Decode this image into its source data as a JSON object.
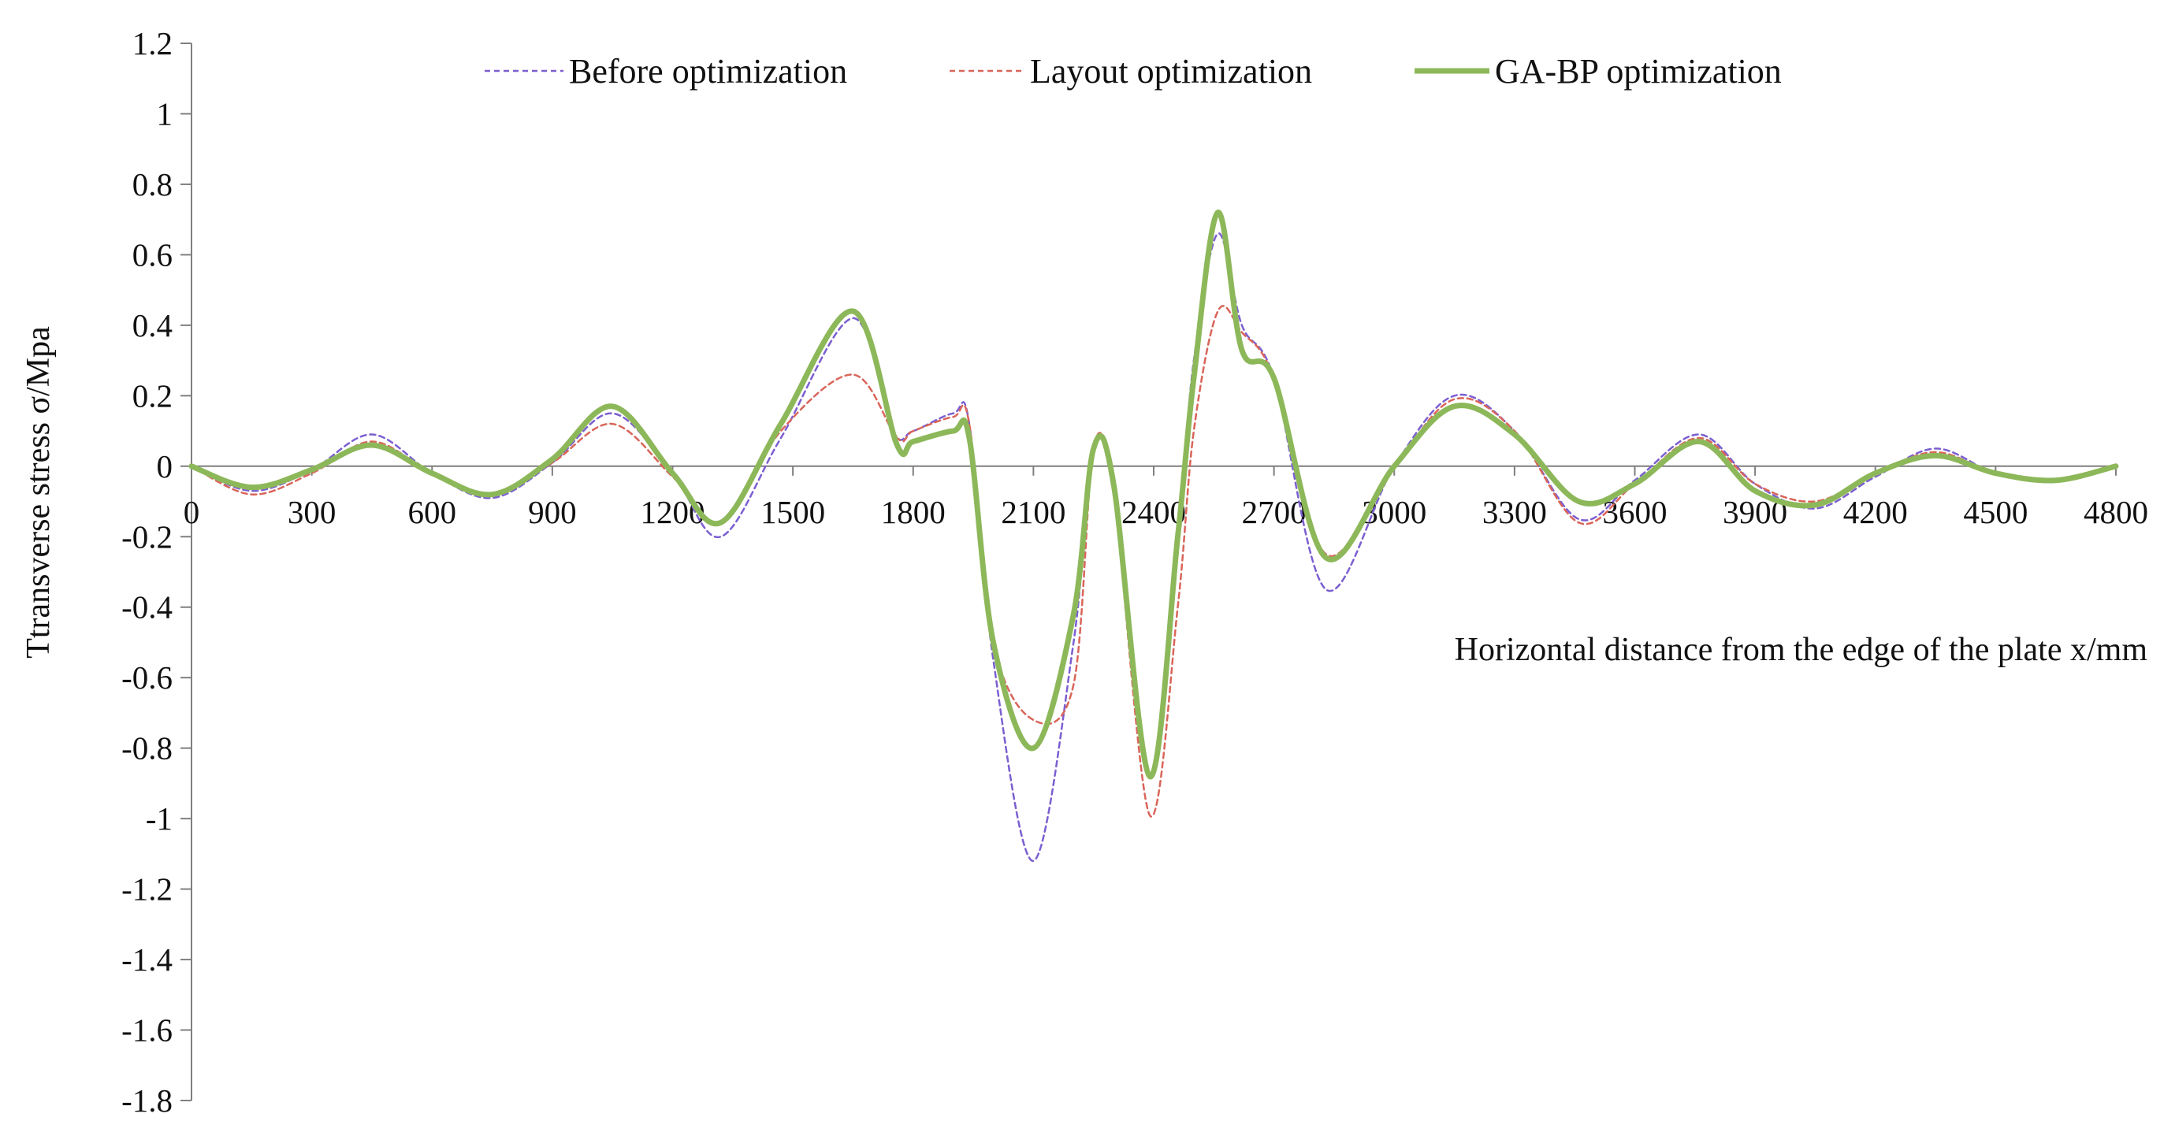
{
  "colors": {
    "before": "#7b5fd1",
    "layout": "#d9655a",
    "gabp": "#8db85a",
    "axis": "#7f7f7f"
  },
  "chart_data": {
    "type": "line",
    "title": "",
    "xlabel": "Horizontal distance from the edge of the plate x/mm",
    "ylabel": "Ttransverse stress σ/Mpa",
    "xlim": [
      0,
      4800
    ],
    "ylim": [
      -1.8,
      1.2
    ],
    "x_ticks": [
      0,
      300,
      600,
      900,
      1200,
      1500,
      1800,
      2100,
      2400,
      2700,
      3000,
      3300,
      3600,
      3900,
      4200,
      4500,
      4800
    ],
    "x_tick_labels": [
      "0",
      "300",
      "600",
      "900",
      "1200",
      "1500",
      "1800",
      "2100",
      "2400",
      "2700",
      "3000",
      "3300",
      "3600",
      "3900",
      "4200",
      "4500",
      "4800"
    ],
    "y_ticks": [
      1.2,
      1,
      0.8,
      0.6,
      0.4,
      0.2,
      0,
      -0.2,
      -0.4,
      -0.6,
      -0.8,
      -1,
      -1.2,
      -1.4,
      -1.6,
      -1.8
    ],
    "y_tick_labels": [
      "1.2",
      "1",
      "0.8",
      "0.6",
      "0.4",
      "0.2",
      "0",
      "-0.2",
      "-0.4",
      "-0.6",
      "-0.8",
      "-1",
      "-1.2",
      "-1.4",
      "-1.6",
      "-1.8"
    ],
    "grid": false,
    "legend": "top",
    "series": [
      {
        "name": "Before optimization",
        "style": "dashed",
        "points": [
          [
            0,
            0
          ],
          [
            150,
            -0.07
          ],
          [
            300,
            -0.01
          ],
          [
            450,
            0.09
          ],
          [
            600,
            -0.02
          ],
          [
            750,
            -0.09
          ],
          [
            900,
            0.01
          ],
          [
            1050,
            0.15
          ],
          [
            1200,
            -0.02
          ],
          [
            1320,
            -0.2
          ],
          [
            1470,
            0.08
          ],
          [
            1650,
            0.42
          ],
          [
            1750,
            0.1
          ],
          [
            1800,
            0.1
          ],
          [
            1900,
            0.15
          ],
          [
            1940,
            0.12
          ],
          [
            2000,
            -0.55
          ],
          [
            2100,
            -1.12
          ],
          [
            2200,
            -0.5
          ],
          [
            2250,
            0.05
          ],
          [
            2300,
            -0.08
          ],
          [
            2390,
            -0.88
          ],
          [
            2460,
            -0.2
          ],
          [
            2500,
            0.3
          ],
          [
            2560,
            0.66
          ],
          [
            2620,
            0.4
          ],
          [
            2700,
            0.25
          ],
          [
            2830,
            -0.35
          ],
          [
            3000,
            0
          ],
          [
            3150,
            0.2
          ],
          [
            3300,
            0.1
          ],
          [
            3460,
            -0.15
          ],
          [
            3600,
            -0.04
          ],
          [
            3760,
            0.09
          ],
          [
            3900,
            -0.05
          ],
          [
            4050,
            -0.12
          ],
          [
            4200,
            -0.03
          ],
          [
            4350,
            0.05
          ],
          [
            4500,
            -0.02
          ],
          [
            4650,
            -0.04
          ],
          [
            4800,
            0
          ]
        ]
      },
      {
        "name": "Layout optimization",
        "style": "dashed",
        "points": [
          [
            0,
            0
          ],
          [
            150,
            -0.08
          ],
          [
            300,
            -0.02
          ],
          [
            450,
            0.07
          ],
          [
            600,
            -0.02
          ],
          [
            750,
            -0.08
          ],
          [
            900,
            0.01
          ],
          [
            1050,
            0.12
          ],
          [
            1200,
            -0.03
          ],
          [
            1320,
            -0.16
          ],
          [
            1470,
            0.1
          ],
          [
            1650,
            0.26
          ],
          [
            1760,
            0.08
          ],
          [
            1800,
            0.1
          ],
          [
            1900,
            0.14
          ],
          [
            1940,
            0.12
          ],
          [
            2000,
            -0.5
          ],
          [
            2100,
            -0.72
          ],
          [
            2200,
            -0.62
          ],
          [
            2250,
            0.05
          ],
          [
            2300,
            -0.08
          ],
          [
            2390,
            -0.99
          ],
          [
            2460,
            -0.4
          ],
          [
            2500,
            0.1
          ],
          [
            2560,
            0.44
          ],
          [
            2620,
            0.38
          ],
          [
            2700,
            0.25
          ],
          [
            2830,
            -0.25
          ],
          [
            3000,
            0
          ],
          [
            3150,
            0.19
          ],
          [
            3300,
            0.1
          ],
          [
            3460,
            -0.16
          ],
          [
            3600,
            -0.05
          ],
          [
            3760,
            0.08
          ],
          [
            3900,
            -0.05
          ],
          [
            4050,
            -0.1
          ],
          [
            4200,
            -0.02
          ],
          [
            4350,
            0.04
          ],
          [
            4500,
            -0.02
          ],
          [
            4650,
            -0.04
          ],
          [
            4800,
            0
          ]
        ]
      },
      {
        "name": "GA-BP optimization",
        "style": "solid",
        "points": [
          [
            0,
            0
          ],
          [
            150,
            -0.06
          ],
          [
            300,
            -0.01
          ],
          [
            450,
            0.06
          ],
          [
            600,
            -0.02
          ],
          [
            750,
            -0.08
          ],
          [
            900,
            0.02
          ],
          [
            1050,
            0.17
          ],
          [
            1200,
            -0.02
          ],
          [
            1320,
            -0.16
          ],
          [
            1470,
            0.12
          ],
          [
            1650,
            0.44
          ],
          [
            1760,
            0.06
          ],
          [
            1800,
            0.07
          ],
          [
            1900,
            0.1
          ],
          [
            1940,
            0.08
          ],
          [
            2000,
            -0.5
          ],
          [
            2100,
            -0.8
          ],
          [
            2200,
            -0.42
          ],
          [
            2250,
            0.05
          ],
          [
            2300,
            -0.05
          ],
          [
            2390,
            -0.88
          ],
          [
            2460,
            -0.2
          ],
          [
            2500,
            0.25
          ],
          [
            2560,
            0.72
          ],
          [
            2620,
            0.33
          ],
          [
            2700,
            0.25
          ],
          [
            2830,
            -0.26
          ],
          [
            3000,
            0
          ],
          [
            3150,
            0.17
          ],
          [
            3300,
            0.09
          ],
          [
            3460,
            -0.1
          ],
          [
            3600,
            -0.05
          ],
          [
            3760,
            0.07
          ],
          [
            3900,
            -0.07
          ],
          [
            4050,
            -0.11
          ],
          [
            4200,
            -0.02
          ],
          [
            4350,
            0.03
          ],
          [
            4500,
            -0.02
          ],
          [
            4650,
            -0.04
          ],
          [
            4800,
            0
          ]
        ]
      }
    ]
  }
}
